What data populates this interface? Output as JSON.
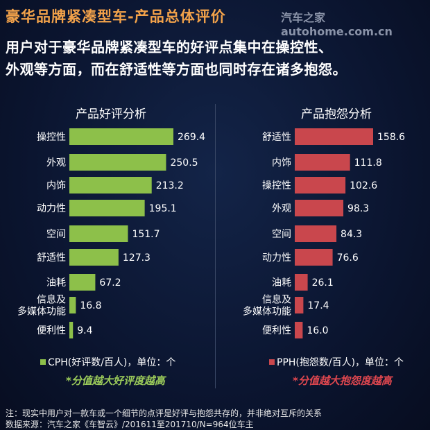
{
  "header": {
    "title": "豪华品牌紧凑型车-产品总体评价",
    "watermark": "汽车之家autohome.com.cn",
    "subtitle_line1": "用户对于豪华品牌紧凑型车的好评点集中在操控性、",
    "subtitle_line2": "外观等方面，而在舒适性等方面也同时存在诸多抱怨。"
  },
  "chart_data": [
    {
      "type": "bar",
      "orientation": "horizontal",
      "title": "产品好评分析",
      "color": "#8dc04a",
      "categories": [
        "操控性",
        "外观",
        "内饰",
        "动力性",
        "空间",
        "舒适性",
        "油耗",
        "信息及\n多媒体功能",
        "便利性"
      ],
      "values": [
        269.4,
        250.5,
        213.2,
        195.1,
        151.7,
        127.3,
        67.2,
        16.8,
        9.4
      ],
      "legend": "CPH(好评数/百人)，单位：个",
      "note": "*分值越大好评度越高",
      "note_color": "#9ccc5a"
    },
    {
      "type": "bar",
      "orientation": "horizontal",
      "title": "产品抱怨分析",
      "color": "#c9474d",
      "categories": [
        "舒适性",
        "内饰",
        "操控性",
        "外观",
        "空间",
        "动力性",
        "油耗",
        "信息及\n多媒体功能",
        "便利性"
      ],
      "values": [
        158.6,
        111.8,
        102.6,
        98.3,
        84.3,
        76.6,
        26.1,
        17.4,
        16.0
      ],
      "legend": "PPH(抱怨数/百人)，单位：个",
      "note": "*分值越大抱怨度越高",
      "note_color": "#e0474f"
    }
  ],
  "footer": {
    "note": "注：现实中用户对一款车或一个细节的点评是好评与抱怨共存的，并非绝对互斥的关系",
    "source": "数据来源：汽车之家《车智云》/201611至201710/N=964位车主"
  }
}
